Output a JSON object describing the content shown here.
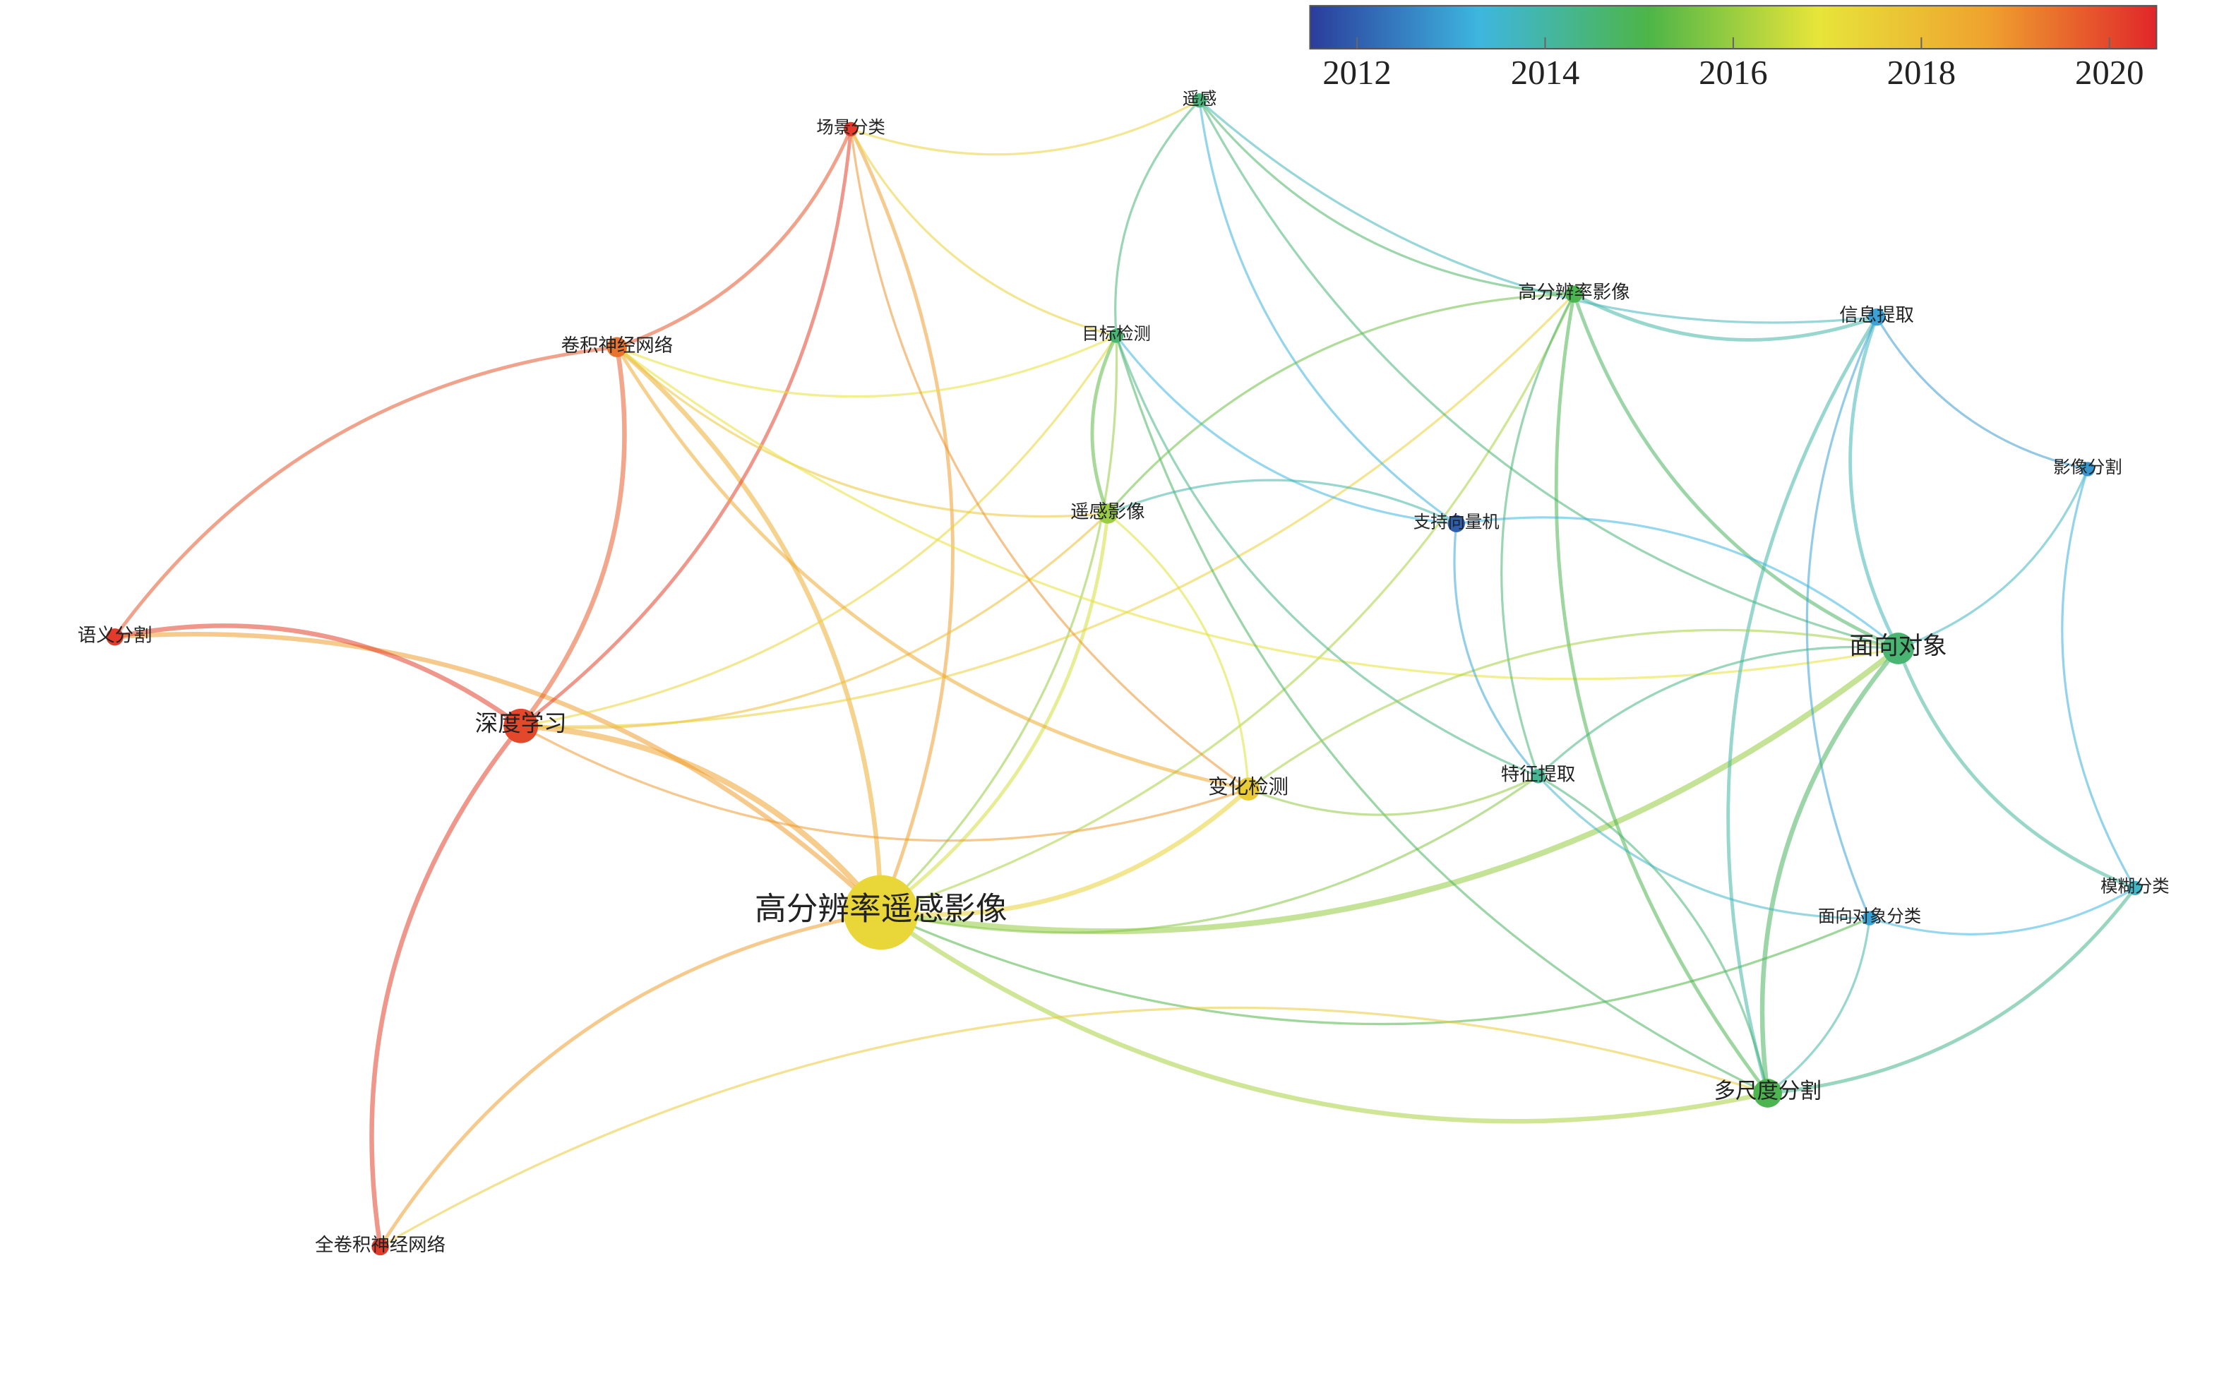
{
  "network": {
    "nodes": [
      {
        "label": "遥感",
        "year": 2014.5
      },
      {
        "label": "场景分类",
        "year": 2020.2
      },
      {
        "label": "卷积神经网络",
        "year": 2019.4
      },
      {
        "label": "目标检测",
        "year": 2014.6
      },
      {
        "label": "高分辨率影像",
        "year": 2015
      },
      {
        "label": "信息提取",
        "year": 2013
      },
      {
        "label": "影像分割",
        "year": 2012.8
      },
      {
        "label": "遥感影像",
        "year": 2016
      },
      {
        "label": "支持向量机",
        "year": 2012
      },
      {
        "label": "语义分割",
        "year": 2020.2
      },
      {
        "label": "深度学习",
        "year": 2020
      },
      {
        "label": "面向对象",
        "year": 2014.6
      },
      {
        "label": "变化检测",
        "year": 2017.6
      },
      {
        "label": "特征提取",
        "year": 2014.2
      },
      {
        "label": "高分辨率遥感影像",
        "year": 2017.3
      },
      {
        "label": "面向对象分类",
        "year": 2013
      },
      {
        "label": "模糊分类",
        "year": 2013.6
      },
      {
        "label": "多尺度分割",
        "year": 2015
      },
      {
        "label": "全卷积神经网络",
        "year": 2020.2
      }
    ]
  },
  "colorbar": {
    "range": [
      2011.5,
      2020.5
    ],
    "ticks": [
      2012,
      2014,
      2016,
      2018,
      2020
    ],
    "colors": [
      "#2b3c9b",
      "#3eb6e0",
      "#4db548",
      "#e7e53a",
      "#efa22f",
      "#e0262a"
    ]
  }
}
